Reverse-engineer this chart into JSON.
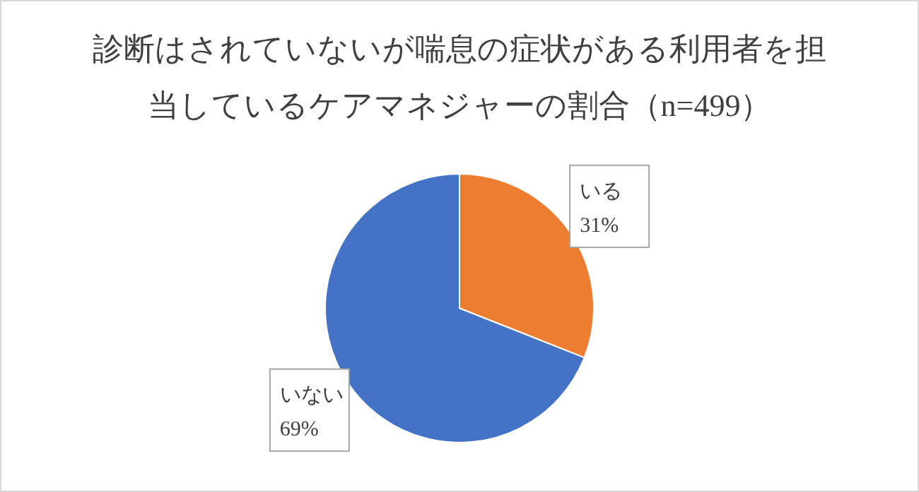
{
  "chart_data": {
    "type": "pie",
    "title": "診断はされていないが喘息の症状がある利用者を担当しているケアマネジャーの割合（n=499）",
    "categories": [
      "いる",
      "いない"
    ],
    "values": [
      31,
      69
    ],
    "colors": [
      "#ed7d31",
      "#4472c4"
    ],
    "value_labels": [
      "31%",
      "69%"
    ],
    "legend": false
  }
}
